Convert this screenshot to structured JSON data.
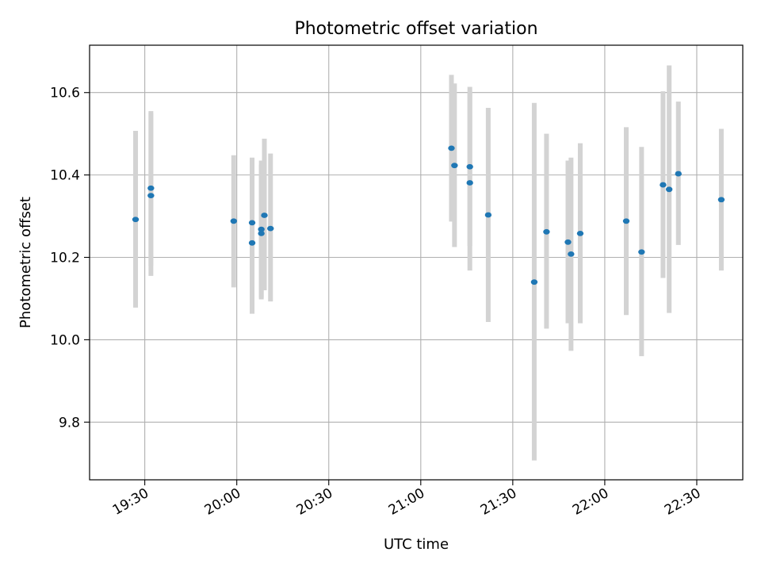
{
  "chart_data": {
    "type": "scatter",
    "title": "Photometric offset variation",
    "xlabel": "UTC time",
    "ylabel": "Photometric offset",
    "x_unit": "time_of_day",
    "xlim": [
      "19:12",
      "22:45"
    ],
    "ylim": [
      9.66,
      10.715
    ],
    "x_ticks": [
      "19:30",
      "20:00",
      "20:30",
      "21:00",
      "21:30",
      "22:00",
      "22:30"
    ],
    "y_ticks": [
      9.8,
      10.0,
      10.2,
      10.4,
      10.6
    ],
    "y_tick_labels": [
      "9.8",
      "10.0",
      "10.2",
      "10.4",
      "10.6"
    ],
    "grid": true,
    "legend": false,
    "colors": {
      "point": "#1f77b4",
      "errorbar": "#d3d3d3",
      "grid": "#b0b0b0"
    },
    "points": [
      {
        "t": "19:27",
        "y": 10.292,
        "lo": 10.078,
        "hi": 10.507
      },
      {
        "t": "19:32",
        "y": 10.35,
        "lo": 10.155,
        "hi": 10.55
      },
      {
        "t": "19:32",
        "y": 10.368,
        "lo": 10.18,
        "hi": 10.555
      },
      {
        "t": "19:59",
        "y": 10.288,
        "lo": 10.127,
        "hi": 10.448
      },
      {
        "t": "20:05",
        "y": 10.284,
        "lo": 10.128,
        "hi": 10.442
      },
      {
        "t": "20:05",
        "y": 10.235,
        "lo": 10.063,
        "hi": 10.407
      },
      {
        "t": "20:08",
        "y": 10.258,
        "lo": 10.098,
        "hi": 10.425
      },
      {
        "t": "20:08",
        "y": 10.268,
        "lo": 10.102,
        "hi": 10.435
      },
      {
        "t": "20:09",
        "y": 10.302,
        "lo": 10.12,
        "hi": 10.488
      },
      {
        "t": "20:11",
        "y": 10.27,
        "lo": 10.093,
        "hi": 10.452
      },
      {
        "t": "21:10",
        "y": 10.465,
        "lo": 10.287,
        "hi": 10.643
      },
      {
        "t": "21:11",
        "y": 10.423,
        "lo": 10.225,
        "hi": 10.622
      },
      {
        "t": "21:16",
        "y": 10.381,
        "lo": 10.168,
        "hi": 10.598
      },
      {
        "t": "21:16",
        "y": 10.42,
        "lo": 10.228,
        "hi": 10.614
      },
      {
        "t": "21:22",
        "y": 10.303,
        "lo": 10.043,
        "hi": 10.563
      },
      {
        "t": "21:37",
        "y": 10.14,
        "lo": 9.707,
        "hi": 10.575
      },
      {
        "t": "21:41",
        "y": 10.262,
        "lo": 10.027,
        "hi": 10.5
      },
      {
        "t": "21:48",
        "y": 10.237,
        "lo": 10.04,
        "hi": 10.435
      },
      {
        "t": "21:49",
        "y": 10.208,
        "lo": 9.973,
        "hi": 10.442
      },
      {
        "t": "21:52",
        "y": 10.258,
        "lo": 10.04,
        "hi": 10.477
      },
      {
        "t": "22:07",
        "y": 10.288,
        "lo": 10.06,
        "hi": 10.516
      },
      {
        "t": "22:12",
        "y": 10.213,
        "lo": 9.96,
        "hi": 10.468
      },
      {
        "t": "22:19",
        "y": 10.376,
        "lo": 10.15,
        "hi": 10.603
      },
      {
        "t": "22:21",
        "y": 10.365,
        "lo": 10.065,
        "hi": 10.666
      },
      {
        "t": "22:24",
        "y": 10.403,
        "lo": 10.23,
        "hi": 10.578
      },
      {
        "t": "22:38",
        "y": 10.34,
        "lo": 10.168,
        "hi": 10.512
      }
    ]
  }
}
